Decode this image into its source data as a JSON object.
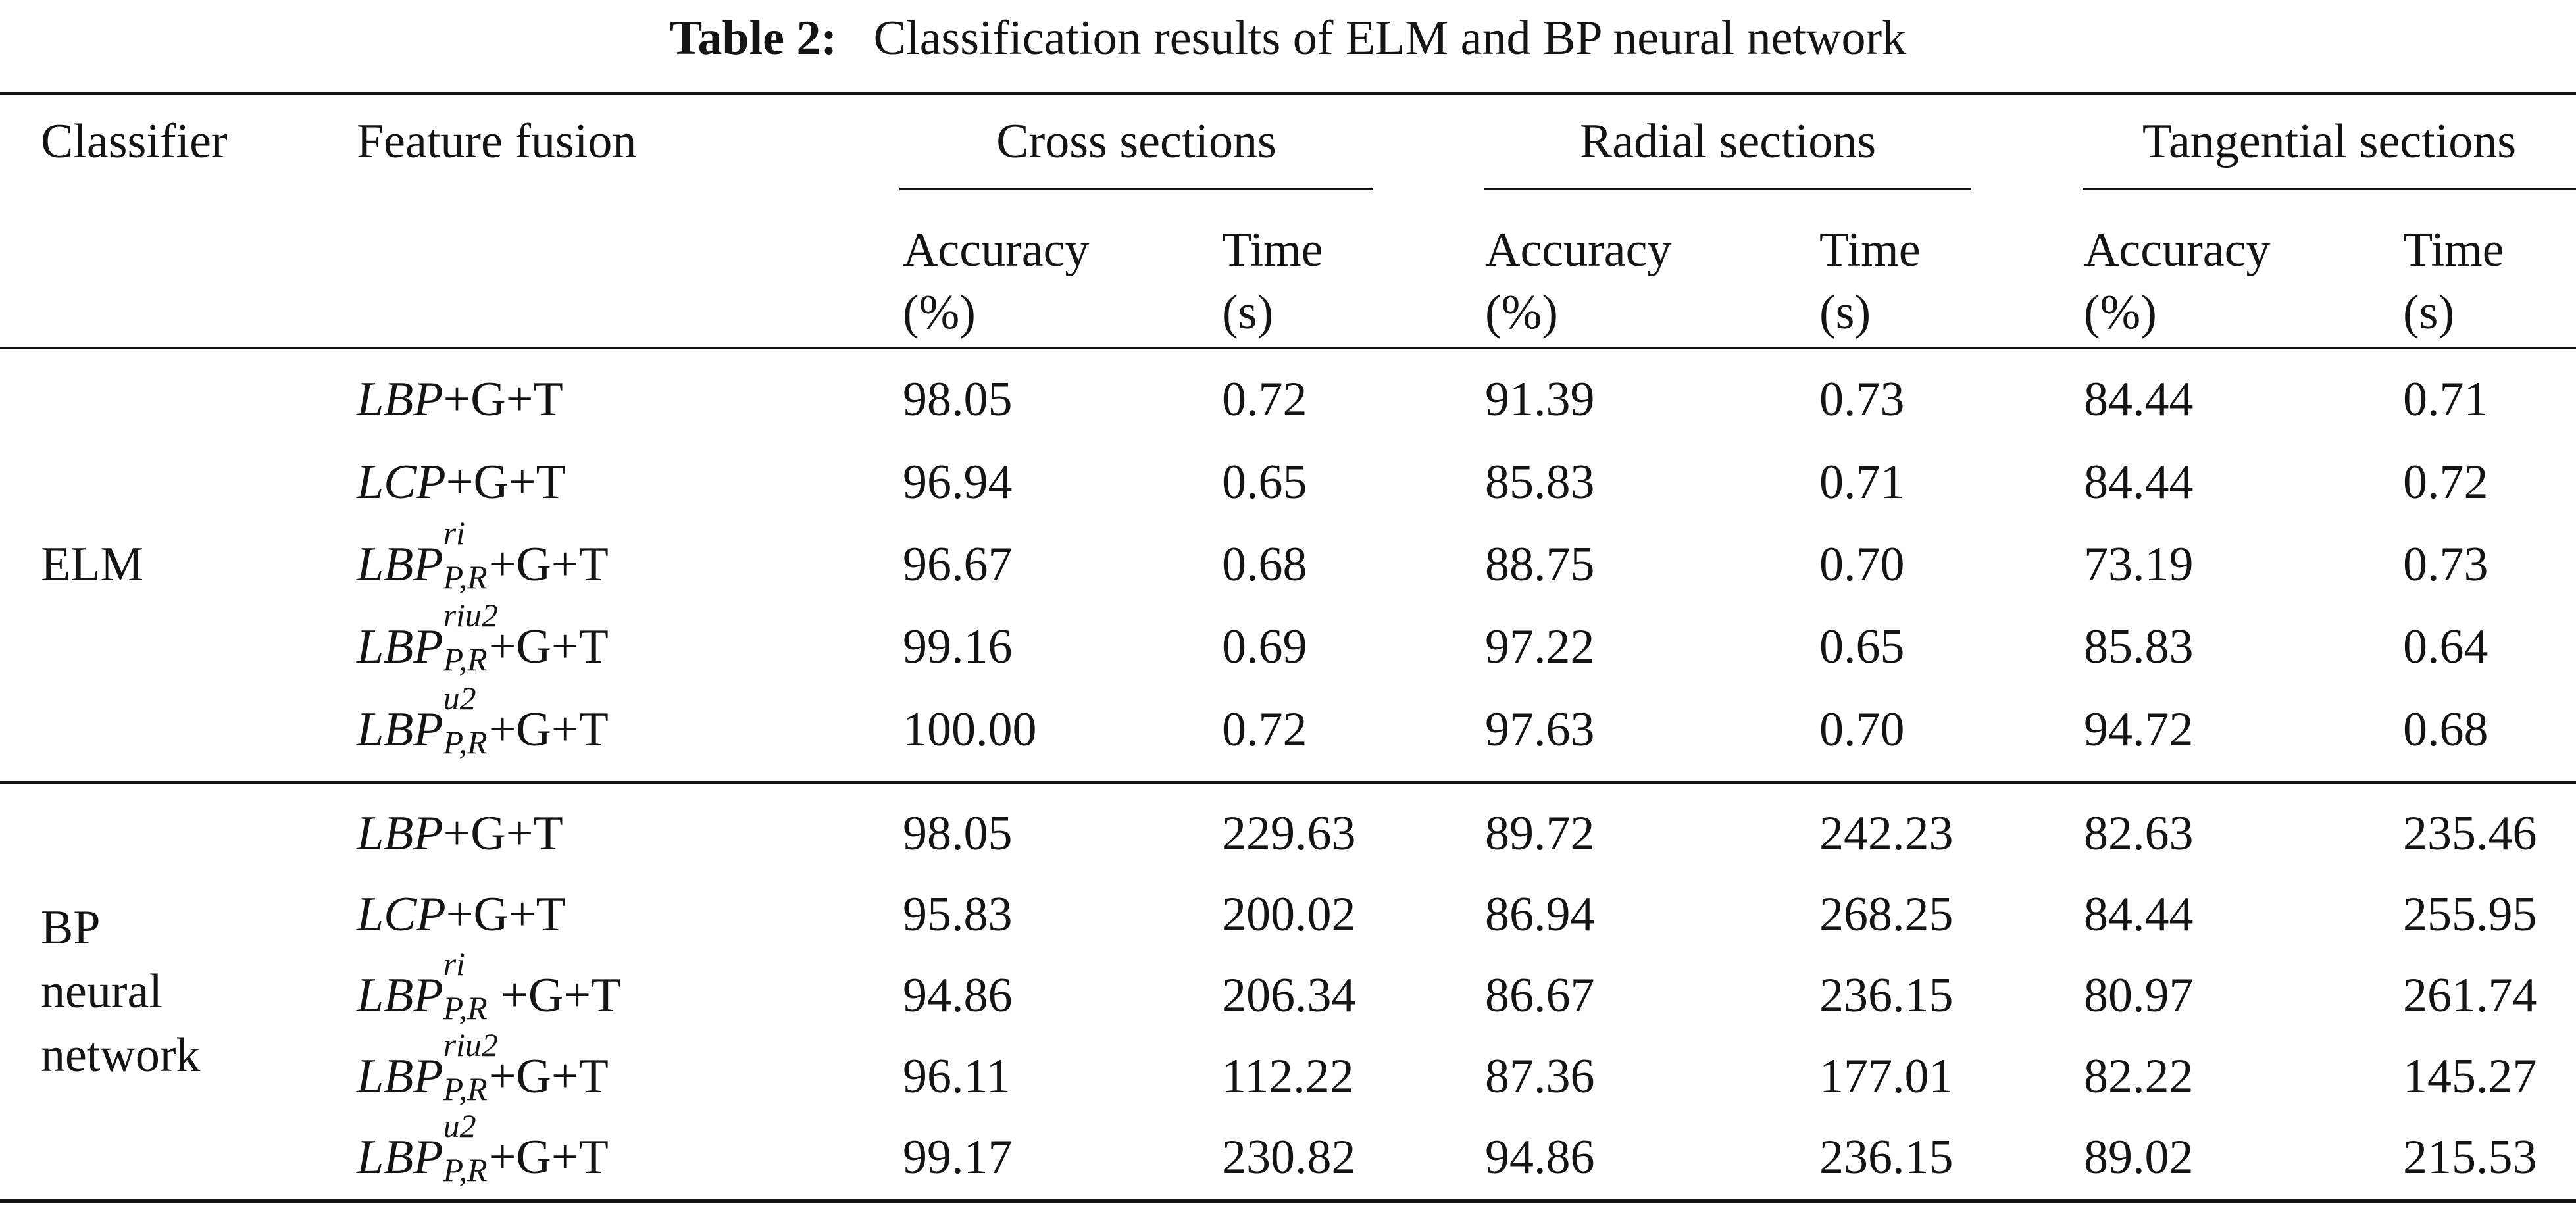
{
  "caption": {
    "label": "Table 2:",
    "text": "Classification results of ELM and BP neural network"
  },
  "header": {
    "classifier": "Classifier",
    "feature_fusion": "Feature fusion",
    "groups": [
      "Cross sections",
      "Radial sections",
      "Tangential sections"
    ],
    "accuracy_line1": "Accuracy",
    "accuracy_line2": "(%)",
    "time_line1": "Time",
    "time_line2": "(s)"
  },
  "classifiers": {
    "elm": "ELM",
    "bp_line1": "BP",
    "bp_line2": "neural",
    "bp_line3": "network"
  },
  "formula_parts": {
    "lbp": "LBP",
    "lcp": "LCP",
    "tail": "+G+T",
    "sub_pr": "P,R",
    "sup_ri": "ri",
    "sup_riu2": "riu2",
    "sup_u2": "u2"
  },
  "rows": [
    {
      "cells": [
        "98.05",
        "0.72",
        "91.39",
        "0.73",
        "84.44",
        "0.71"
      ]
    },
    {
      "cells": [
        "96.94",
        "0.65",
        "85.83",
        "0.71",
        "84.44",
        "0.72"
      ]
    },
    {
      "cells": [
        "96.67",
        "0.68",
        "88.75",
        "0.70",
        "73.19",
        "0.73"
      ]
    },
    {
      "cells": [
        "99.16",
        "0.69",
        "97.22",
        "0.65",
        "85.83",
        "0.64"
      ]
    },
    {
      "cells": [
        "100.00",
        "0.72",
        "97.63",
        "0.70",
        "94.72",
        "0.68"
      ]
    },
    {
      "cells": [
        "98.05",
        "229.63",
        "89.72",
        "242.23",
        "82.63",
        "235.46"
      ]
    },
    {
      "cells": [
        "95.83",
        "200.02",
        "86.94",
        "268.25",
        "84.44",
        "255.95"
      ]
    },
    {
      "cells": [
        "94.86",
        "206.34",
        "86.67",
        "236.15",
        "80.97",
        "261.74"
      ]
    },
    {
      "cells": [
        "96.11",
        "112.22",
        "87.36",
        "177.01",
        "82.22",
        "145.27"
      ]
    },
    {
      "cells": [
        "99.17",
        "230.82",
        "94.86",
        "236.15",
        "89.02",
        "215.53"
      ]
    }
  ]
}
